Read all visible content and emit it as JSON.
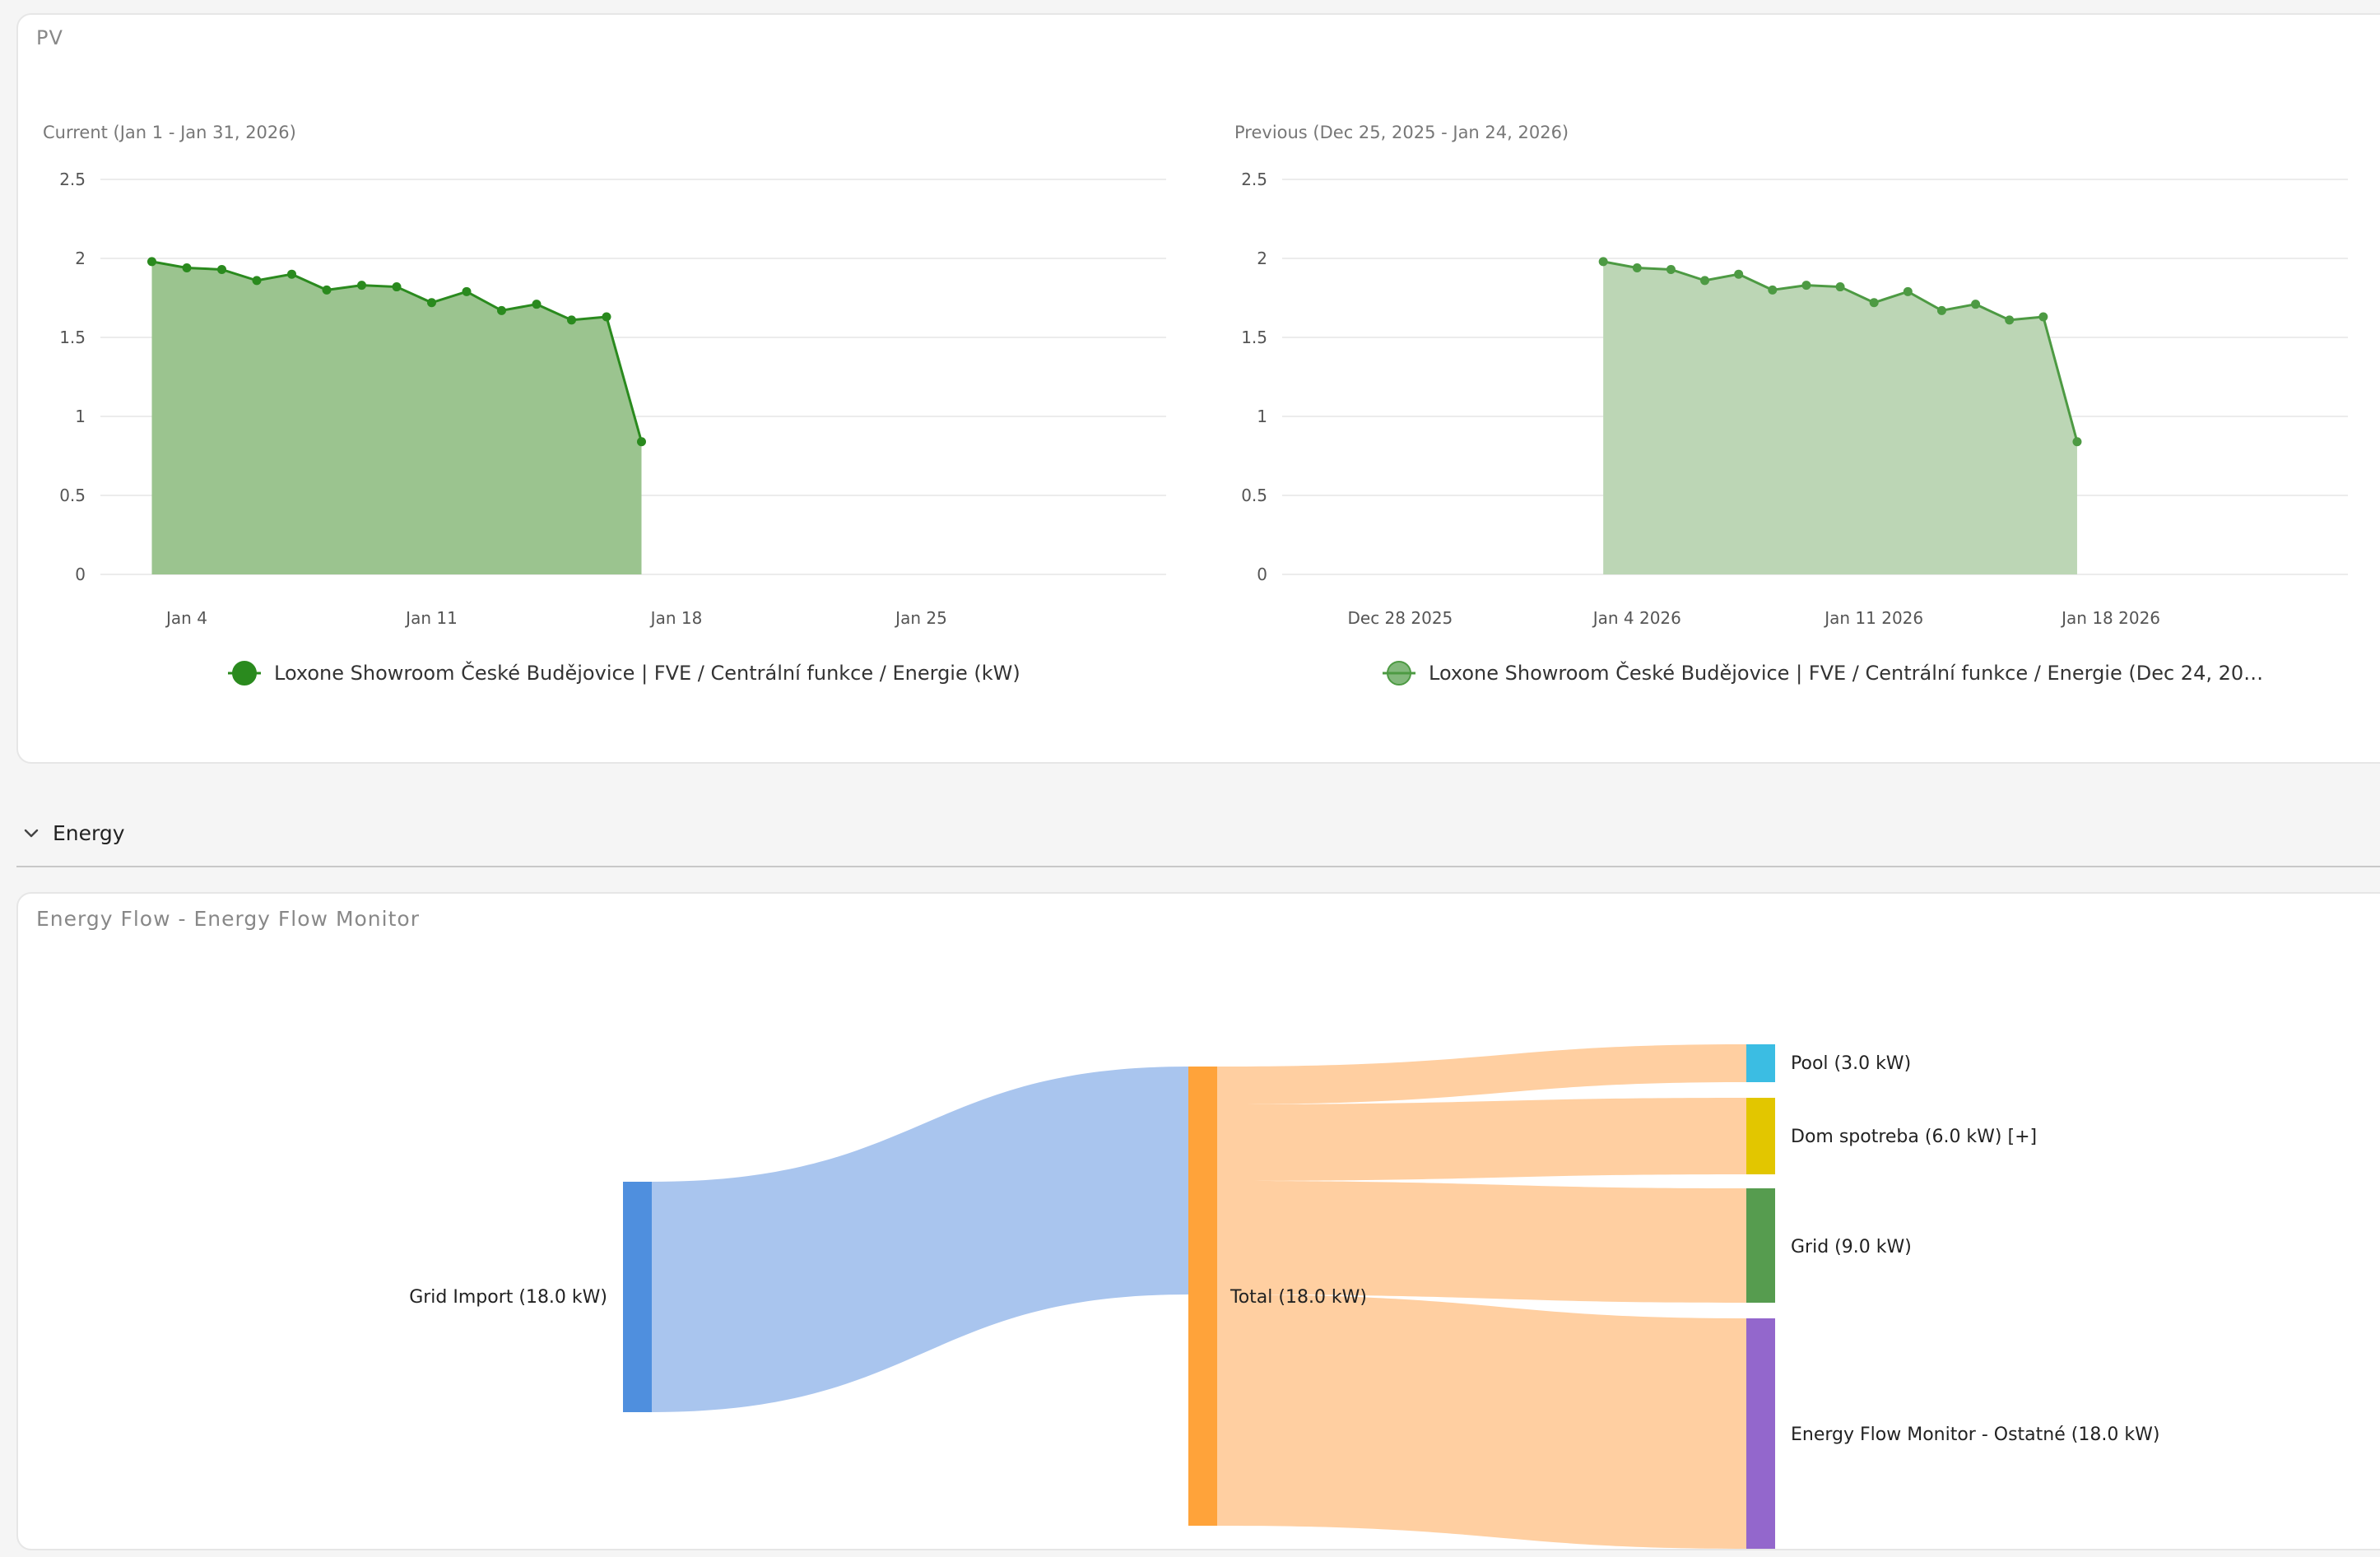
{
  "pv": {
    "title": "PV",
    "charts": [
      {
        "subtitle": "Current (Jan 1 - Jan 31, 2026)",
        "legend": "Loxone Showroom České Budějovice | FVE / Centrální funkce / Energie (kW)",
        "color": "#2a8a1e",
        "fill": "#9bc48f"
      },
      {
        "subtitle": "Previous (Dec 25, 2025 - Jan 24, 2026)",
        "legend": "Loxone Showroom České Budějovice | FVE / Centrální funkce / Energie (Dec 24, 20…",
        "color": "#4d9a43",
        "fill": "#bcd6b5"
      }
    ]
  },
  "energy_section": {
    "label": "Energy"
  },
  "flow": {
    "title": "Energy Flow - Energy Flow Monitor",
    "nodes": {
      "source": {
        "label": "Grid Import (18.0 kW)",
        "color": "#4f8fde"
      },
      "total": {
        "label": "Total (18.0 kW)",
        "color": "#ffa33a"
      },
      "targets": [
        {
          "label": "Pool (3.0 kW)",
          "value": 3.0,
          "color": "#3bbde3"
        },
        {
          "label": "Dom spotreba (6.0 kW) [+]",
          "value": 6.0,
          "color": "#e2c600"
        },
        {
          "label": "Grid (9.0 kW)",
          "value": 9.0,
          "color": "#569c4f"
        },
        {
          "label": "Energy Flow Monitor - Ostatné (18.0 kW)",
          "value": 18.0,
          "color": "#9367cc"
        }
      ]
    },
    "link_colors": {
      "source": "#a9c5ee",
      "total": "#ffcfa1"
    }
  },
  "chart_data": [
    {
      "type": "area",
      "title": "Current (Jan 1 - Jan 31, 2026)",
      "x": [
        "2026-01-03",
        "2026-01-04",
        "2026-01-05",
        "2026-01-06",
        "2026-01-07",
        "2026-01-08",
        "2026-01-09",
        "2026-01-10",
        "2026-01-11",
        "2026-01-12",
        "2026-01-13",
        "2026-01-14",
        "2026-01-15",
        "2026-01-16",
        "2026-01-17"
      ],
      "series": [
        {
          "name": "Loxone Showroom České Budějovice | FVE / Centrální funkce / Energie (kW)",
          "values": [
            1.98,
            1.94,
            1.93,
            1.86,
            1.9,
            1.8,
            1.83,
            1.82,
            1.72,
            1.79,
            1.67,
            1.71,
            1.61,
            1.63,
            0.84
          ]
        }
      ],
      "x_ticks": [
        "Jan  4",
        "Jan 11",
        "Jan 18",
        "Jan 25"
      ],
      "y_ticks": [
        "0",
        "0.5",
        "1",
        "1.5",
        "2",
        "2.5"
      ],
      "xlim": [
        "2026-01-02",
        "2026-02-01"
      ],
      "ylim": [
        0,
        2.5
      ],
      "grid": true,
      "legend": "bottom"
    },
    {
      "type": "area",
      "title": "Previous (Dec 25, 2025 - Jan 24, 2026)",
      "x": [
        "2026-01-03",
        "2026-01-04",
        "2026-01-05",
        "2026-01-06",
        "2026-01-07",
        "2026-01-08",
        "2026-01-09",
        "2026-01-10",
        "2026-01-11",
        "2026-01-12",
        "2026-01-13",
        "2026-01-14",
        "2026-01-15",
        "2026-01-16",
        "2026-01-17"
      ],
      "series": [
        {
          "name": "Loxone Showroom České Budějovice | FVE / Centrální funkce / Energie (Dec 24, 20…",
          "values": [
            1.98,
            1.94,
            1.93,
            1.86,
            1.9,
            1.8,
            1.83,
            1.82,
            1.72,
            1.79,
            1.67,
            1.71,
            1.61,
            1.63,
            0.84
          ]
        }
      ],
      "x_ticks": [
        "Dec 28 2025",
        "Jan  4 2026",
        "Jan 11 2026",
        "Jan 18 2026"
      ],
      "y_ticks": [
        "0",
        "0.5",
        "1",
        "1.5",
        "2",
        "2.5"
      ],
      "xlim": [
        "2025-12-25",
        "2026-01-25"
      ],
      "ylim": [
        0,
        2.5
      ],
      "grid": true,
      "legend": "bottom"
    }
  ]
}
